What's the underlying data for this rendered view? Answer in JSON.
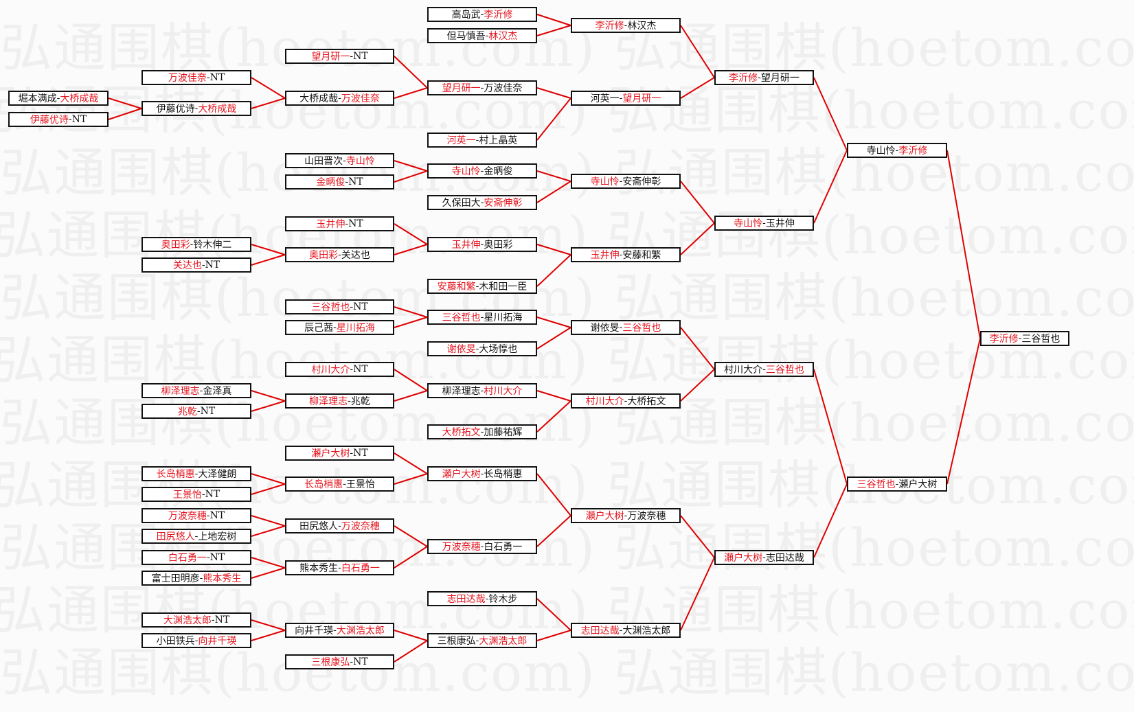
{
  "watermark": "弘通围棋(hoetom.com)",
  "colors": {
    "winner": "#e4141e",
    "line": "#e00000",
    "text": "#111111"
  },
  "separator": "-",
  "rounds": [
    [
      {
        "a": "堀本满成",
        "b": "大桥成哉",
        "winner": "b",
        "to": 1
      },
      {
        "a": "伊藤优诗",
        "b": "NT",
        "winner": "a",
        "to": 1
      }
    ],
    [
      {
        "a": "万波佳奈",
        "b": "NT",
        "winner": "a",
        "to": 1
      },
      {
        "a": "伊藤优诗",
        "b": "大桥成哉",
        "winner": "b",
        "to": 1
      },
      {
        "a": "奥田彩",
        "b": "铃木伸二",
        "winner": "a",
        "to": 5
      },
      {
        "a": "关达也",
        "b": "NT",
        "winner": "a",
        "to": 5
      },
      {
        "a": "柳泽理志",
        "b": "金泽真",
        "winner": "a",
        "to": 9
      },
      {
        "a": "兆乾",
        "b": "NT",
        "winner": "a",
        "to": 9
      },
      {
        "a": "长岛梢惠",
        "b": "大泽健朗",
        "winner": "a",
        "to": 11
      },
      {
        "a": "王景怡",
        "b": "NT",
        "winner": "a",
        "to": 11
      },
      {
        "a": "万波奈穗",
        "b": "NT",
        "winner": "a",
        "to": 12
      },
      {
        "a": "田尻悠人",
        "b": "上地宏树",
        "winner": "a",
        "to": 12
      },
      {
        "a": "白石勇一",
        "b": "NT",
        "winner": "a",
        "to": 13
      },
      {
        "a": "富士田明彦",
        "b": "熊本秀生",
        "winner": "b",
        "to": 13
      },
      {
        "a": "大渊浩太郎",
        "b": "NT",
        "winner": "a",
        "to": 14
      },
      {
        "a": "小田铁兵",
        "b": "向井千瑛",
        "winner": "b",
        "to": 14
      }
    ],
    [
      {
        "a": "望月研一",
        "b": "NT",
        "winner": "a",
        "to": 2
      },
      {
        "a": "大桥成哉",
        "b": "万波佳奈",
        "winner": "b",
        "to": 2
      },
      {
        "a": "山田晋次",
        "b": "寺山怜",
        "winner": "b",
        "to": 4
      },
      {
        "a": "金昞俊",
        "b": "NT",
        "winner": "a",
        "to": 4
      },
      {
        "a": "玉井伸",
        "b": "NT",
        "winner": "a",
        "to": 6
      },
      {
        "a": "奥田彩",
        "b": "关达也",
        "winner": "a",
        "to": 6
      },
      {
        "a": "三谷哲也",
        "b": "NT",
        "winner": "a",
        "to": 8
      },
      {
        "a": "辰己茜",
        "b": "星川拓海",
        "winner": "b",
        "to": 8
      },
      {
        "a": "村川大介",
        "b": "NT",
        "winner": "a",
        "to": 10
      },
      {
        "a": "柳泽理志",
        "b": "兆乾",
        "winner": "a",
        "to": 10
      },
      {
        "a": "瀬户大树",
        "b": "NT",
        "winner": "a",
        "to": 12
      },
      {
        "a": "长岛梢惠",
        "b": "王景怡",
        "winner": "a",
        "to": 12
      },
      {
        "a": "田尻悠人",
        "b": "万波奈穗",
        "winner": "b",
        "to": 13
      },
      {
        "a": "熊本秀生",
        "b": "白石勇一",
        "winner": "b",
        "to": 13
      },
      {
        "a": "向井千瑛",
        "b": "大渊浩太郎",
        "winner": "b",
        "to": 15
      },
      {
        "a": "三根康弘",
        "b": "NT",
        "winner": "a",
        "to": 15
      }
    ],
    [
      {
        "a": "高岛武",
        "b": "李沂修",
        "winner": "b",
        "to": 0
      },
      {
        "a": "但马慎吾",
        "b": "林汉杰",
        "winner": "b",
        "to": 0
      },
      {
        "a": "望月研一",
        "b": "万波佳奈",
        "winner": "a",
        "to": 1
      },
      {
        "a": "河英一",
        "b": "村上晶英",
        "winner": "a",
        "to": 1
      },
      {
        "a": "寺山怜",
        "b": "金昞俊",
        "winner": "a",
        "to": 2
      },
      {
        "a": "久保田大",
        "b": "安斋伸彰",
        "winner": "b",
        "to": 2
      },
      {
        "a": "玉井伸",
        "b": "奥田彩",
        "winner": "a",
        "to": 3
      },
      {
        "a": "安藤和繁",
        "b": "木和田一臣",
        "winner": "a",
        "to": 3
      },
      {
        "a": "三谷哲也",
        "b": "星川拓海",
        "winner": "a",
        "to": 4
      },
      {
        "a": "谢依旻",
        "b": "大场惇也",
        "winner": "a",
        "to": 4
      },
      {
        "a": "柳泽理志",
        "b": "村川大介",
        "winner": "b",
        "to": 5
      },
      {
        "a": "大桥拓文",
        "b": "加藤祐辉",
        "winner": "a",
        "to": 5
      },
      {
        "a": "瀬户大树",
        "b": "长岛梢惠",
        "winner": "a",
        "to": 6
      },
      {
        "a": "万波奈穗",
        "b": "白石勇一",
        "winner": "a",
        "to": 6
      },
      {
        "a": "志田达哉",
        "b": "铃木步",
        "winner": "a",
        "to": 7
      },
      {
        "a": "三根康弘",
        "b": "大渊浩太郎",
        "winner": "b",
        "to": 7
      }
    ],
    [
      {
        "a": "李沂修",
        "b": "林汉杰",
        "winner": "a",
        "to": 0
      },
      {
        "a": "河英一",
        "b": "望月研一",
        "winner": "b",
        "to": 0
      },
      {
        "a": "寺山怜",
        "b": "安斋伸彰",
        "winner": "a",
        "to": 1
      },
      {
        "a": "玉井伸",
        "b": "安藤和繁",
        "winner": "a",
        "to": 1
      },
      {
        "a": "谢依旻",
        "b": "三谷哲也",
        "winner": "b",
        "to": 2
      },
      {
        "a": "村川大介",
        "b": "大桥拓文",
        "winner": "a",
        "to": 2
      },
      {
        "a": "瀬户大树",
        "b": "万波奈穗",
        "winner": "a",
        "to": 3
      },
      {
        "a": "志田达哉",
        "b": "大渊浩太郎",
        "winner": "a",
        "to": 3
      }
    ],
    [
      {
        "a": "李沂修",
        "b": "望月研一",
        "winner": "a",
        "to": 0
      },
      {
        "a": "寺山怜",
        "b": "玉井伸",
        "winner": "a",
        "to": 0
      },
      {
        "a": "村川大介",
        "b": "三谷哲也",
        "winner": "b",
        "to": 1
      },
      {
        "a": "瀬户大树",
        "b": "志田达哉",
        "winner": "a",
        "to": 1
      }
    ],
    [
      {
        "a": "寺山怜",
        "b": "李沂修",
        "winner": "b",
        "to": 0
      },
      {
        "a": "三谷哲也",
        "b": "瀬户大树",
        "winner": "a",
        "to": 0
      }
    ],
    [
      {
        "a": "李沂修",
        "b": "三谷哲也",
        "winner": "a"
      }
    ]
  ]
}
